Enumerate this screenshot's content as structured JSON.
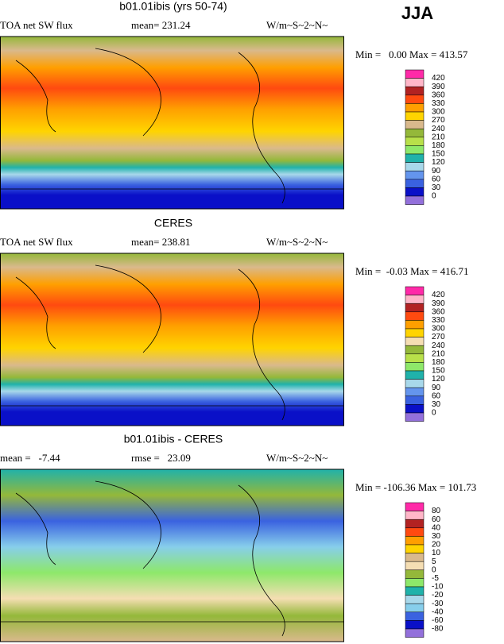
{
  "header": {
    "season": "JJA"
  },
  "panels": [
    {
      "title": "b01.01ibis (yrs 50-74)",
      "left": "TOA net SW flux",
      "middle": "mean= 231.24",
      "units": "W/m~S~2~N~",
      "range": "Min =   0.00 Max = 413.57",
      "colorbar": {
        "labels": [
          "420",
          "390",
          "360",
          "330",
          "300",
          "270",
          "240",
          "210",
          "180",
          "150",
          "120",
          "90",
          "60",
          "30",
          "0"
        ],
        "colors": [
          "#ff2aa8",
          "#ffb6c8",
          "#b22222",
          "#ff4a10",
          "#ff9f00",
          "#ffd400",
          "#d9b98c",
          "#94b83a",
          "#b8e04a",
          "#8ee86a",
          "#20b2aa",
          "#a8d8ea",
          "#6495ed",
          "#3a62e0",
          "#0a10c8",
          "#9370db"
        ]
      }
    },
    {
      "title": "CERES",
      "left": "TOA net SW flux",
      "middle": "mean= 238.81",
      "units": "W/m~S~2~N~",
      "range": "Min =  -0.03 Max = 416.71",
      "colorbar": {
        "labels": [
          "420",
          "390",
          "360",
          "330",
          "300",
          "270",
          "240",
          "210",
          "180",
          "150",
          "120",
          "90",
          "60",
          "30",
          "0"
        ],
        "colors": [
          "#ff2aa8",
          "#ffb6c8",
          "#b22222",
          "#ff4a10",
          "#ff9f00",
          "#ffd400",
          "#f5deb3",
          "#94b83a",
          "#b8e04a",
          "#8ee86a",
          "#20b2aa",
          "#a8d8ea",
          "#6495ed",
          "#3a62e0",
          "#0a10c8",
          "#9370db"
        ]
      }
    },
    {
      "title": "b01.01ibis - CERES",
      "left": "mean =   -7.44",
      "middle": "rmse =   23.09",
      "units": "W/m~S~2~N~",
      "range": "Min = -106.36 Max = 101.73",
      "colorbar": {
        "labels": [
          "80",
          "60",
          "40",
          "30",
          "20",
          "10",
          "5",
          "0",
          "-5",
          "-10",
          "-20",
          "-30",
          "-40",
          "-60",
          "-80"
        ],
        "colors": [
          "#ff2aa8",
          "#ffb6c8",
          "#b22222",
          "#ff4a10",
          "#ff9f00",
          "#ffd400",
          "#d9b98c",
          "#f5deb3",
          "#94b83a",
          "#8ee86a",
          "#20b2aa",
          "#a8d8ea",
          "#87ceeb",
          "#3a62e0",
          "#0a10c8",
          "#9370db"
        ]
      }
    }
  ]
}
